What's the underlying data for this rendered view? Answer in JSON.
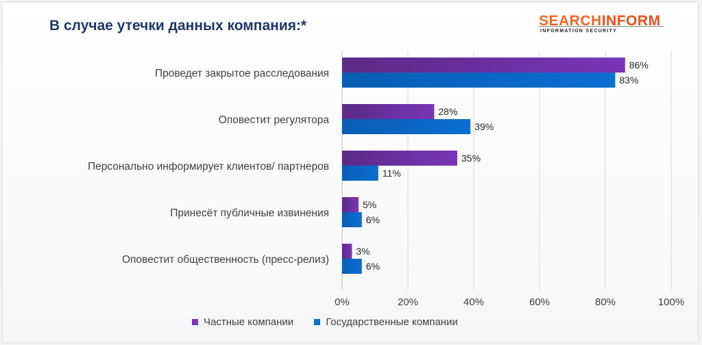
{
  "title": "В случае утечки данных компания:*",
  "logo": {
    "part1": "SEARCH",
    "part2": "INFORM",
    "subtitle": "INFORMATION SECURITY"
  },
  "colors": {
    "private": "#7a35b8",
    "government": "#0b6fd1",
    "grid": "#d9d9d9"
  },
  "chart_data": {
    "type": "bar",
    "orientation": "horizontal",
    "categories": [
      "Проведет закрытое расследования",
      "Оповестит регулятора",
      "Персонально информирует клиентов/ партнеров",
      "Принесёт публичные извинения",
      "Оповестит общественность (пресс-релиз)"
    ],
    "series": [
      {
        "name": "Частные компании",
        "values": [
          86,
          28,
          35,
          5,
          3
        ]
      },
      {
        "name": "Государственные компании",
        "values": [
          83,
          39,
          11,
          6,
          6
        ]
      }
    ],
    "xlim": [
      0,
      100
    ],
    "xticks": [
      "0%",
      "20%",
      "40%",
      "60%",
      "80%",
      "100%"
    ],
    "value_suffix": "%",
    "grid": true,
    "legend_position": "bottom"
  }
}
